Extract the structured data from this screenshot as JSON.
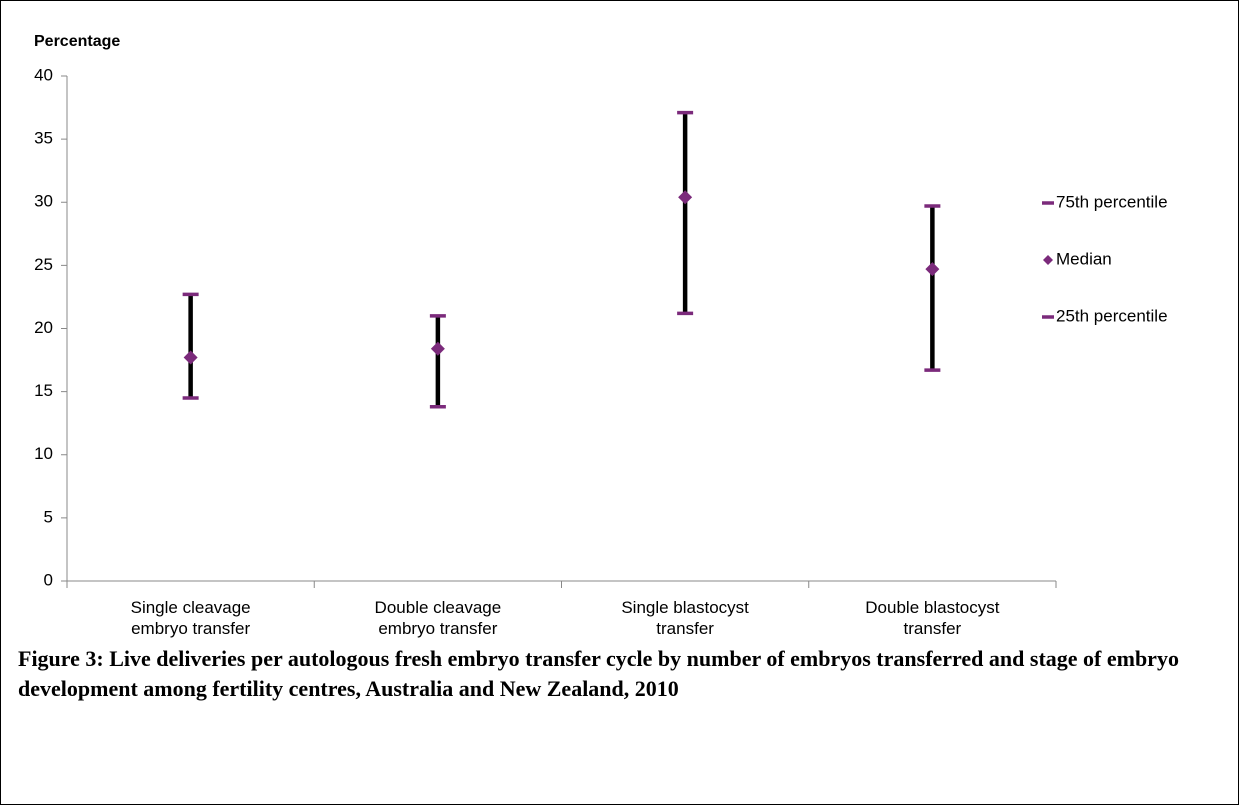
{
  "chart_data": {
    "type": "percentile-range",
    "y_label": "Percentage",
    "caption": "Figure 3: Live deliveries per autologous fresh embryo transfer cycle by number of embryos transferred and stage of embryo development among fertility centres, Australia and New Zealand, 2010",
    "categories": [
      "Single cleavage embryo transfer",
      "Double cleavage embryo transfer",
      "Single blastocyst transfer",
      "Double blastocyst transfer"
    ],
    "series": [
      {
        "name": "75th percentile",
        "color": "#7b2a7b",
        "marker": "dash",
        "values": [
          22.7,
          21.0,
          37.1,
          29.7
        ]
      },
      {
        "name": "Median",
        "color": "#7b2a7b",
        "marker": "diamond",
        "values": [
          17.7,
          18.4,
          30.4,
          24.7
        ]
      },
      {
        "name": "25th percentile",
        "color": "#7b2a7b",
        "marker": "dash",
        "values": [
          14.5,
          13.8,
          21.2,
          16.7
        ]
      }
    ],
    "range_line_color": "#000000",
    "ylim": [
      0,
      40
    ],
    "yticks": [
      0,
      5,
      10,
      15,
      20,
      25,
      30,
      35,
      40
    ],
    "legend": "right"
  }
}
